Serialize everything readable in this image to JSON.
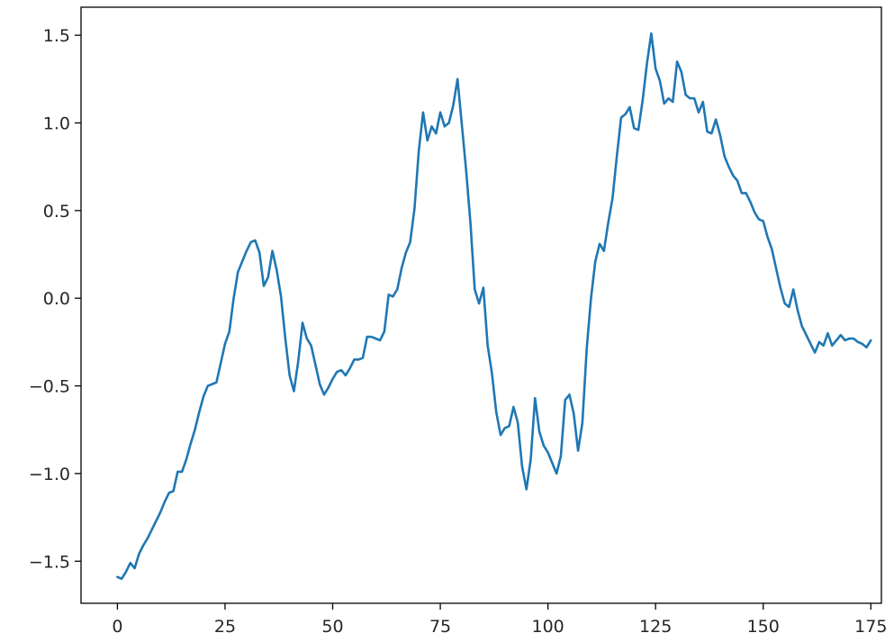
{
  "chart_data": {
    "type": "line",
    "title": "",
    "xlabel": "",
    "ylabel": "",
    "xlim": [
      -8.45,
      177.45
    ],
    "ylim": [
      -1.74,
      1.66
    ],
    "grid": false,
    "legend": "none",
    "x_ticks": [
      0,
      25,
      50,
      75,
      100,
      125,
      150,
      175
    ],
    "x_tick_labels": [
      "0",
      "25",
      "50",
      "75",
      "100",
      "125",
      "150",
      "175"
    ],
    "y_ticks": [
      1.5,
      1.0,
      0.5,
      0.0,
      -0.5,
      -1.0,
      -1.5
    ],
    "y_tick_labels": [
      "1.5",
      "1.0",
      "0.5",
      "0.0",
      "−0.5",
      "−1.0",
      "−1.5"
    ],
    "series": [
      {
        "color": "#1f77b4",
        "x_start": 0,
        "x_step": 1,
        "values": [
          -1.59,
          -1.6,
          -1.56,
          -1.51,
          -1.54,
          -1.46,
          -1.41,
          -1.37,
          -1.32,
          -1.27,
          -1.22,
          -1.16,
          -1.11,
          -1.1,
          -0.99,
          -0.99,
          -0.92,
          -0.83,
          -0.75,
          -0.65,
          -0.56,
          -0.5,
          -0.49,
          -0.48,
          -0.37,
          -0.26,
          -0.19,
          0.0,
          0.15,
          0.21,
          0.27,
          0.32,
          0.33,
          0.26,
          0.07,
          0.12,
          0.27,
          0.16,
          0.01,
          -0.23,
          -0.44,
          -0.53,
          -0.36,
          -0.14,
          -0.23,
          -0.27,
          -0.38,
          -0.49,
          -0.55,
          -0.51,
          -0.46,
          -0.42,
          -0.41,
          -0.44,
          -0.4,
          -0.35,
          -0.35,
          -0.34,
          -0.22,
          -0.22,
          -0.23,
          -0.24,
          -0.19,
          0.02,
          0.01,
          0.05,
          0.17,
          0.26,
          0.32,
          0.51,
          0.84,
          1.06,
          0.9,
          0.98,
          0.94,
          1.06,
          0.98,
          1.0,
          1.1,
          1.25,
          0.99,
          0.73,
          0.43,
          0.05,
          -0.03,
          0.06,
          -0.27,
          -0.43,
          -0.65,
          -0.78,
          -0.74,
          -0.73,
          -0.62,
          -0.71,
          -0.96,
          -1.09,
          -0.92,
          -0.57,
          -0.76,
          -0.84,
          -0.88,
          -0.94,
          -1.0,
          -0.9,
          -0.58,
          -0.55,
          -0.66,
          -0.87,
          -0.71,
          -0.29,
          0.0,
          0.21,
          0.31,
          0.27,
          0.43,
          0.57,
          0.81,
          1.03,
          1.05,
          1.09,
          0.97,
          0.96,
          1.13,
          1.34,
          1.51,
          1.31,
          1.24,
          1.11,
          1.14,
          1.12,
          1.35,
          1.29,
          1.16,
          1.14,
          1.14,
          1.06,
          1.12,
          0.95,
          0.94,
          1.02,
          0.93,
          0.81,
          0.75,
          0.7,
          0.67,
          0.6,
          0.6,
          0.55,
          0.49,
          0.45,
          0.44,
          0.35,
          0.28,
          0.17,
          0.06,
          -0.03,
          -0.05,
          0.05,
          -0.07,
          -0.16,
          -0.21,
          -0.26,
          -0.31,
          -0.25,
          -0.27,
          -0.2,
          -0.27,
          -0.24,
          -0.21,
          -0.24,
          -0.23,
          -0.23,
          -0.25,
          -0.26,
          -0.28,
          -0.24
        ]
      }
    ]
  }
}
